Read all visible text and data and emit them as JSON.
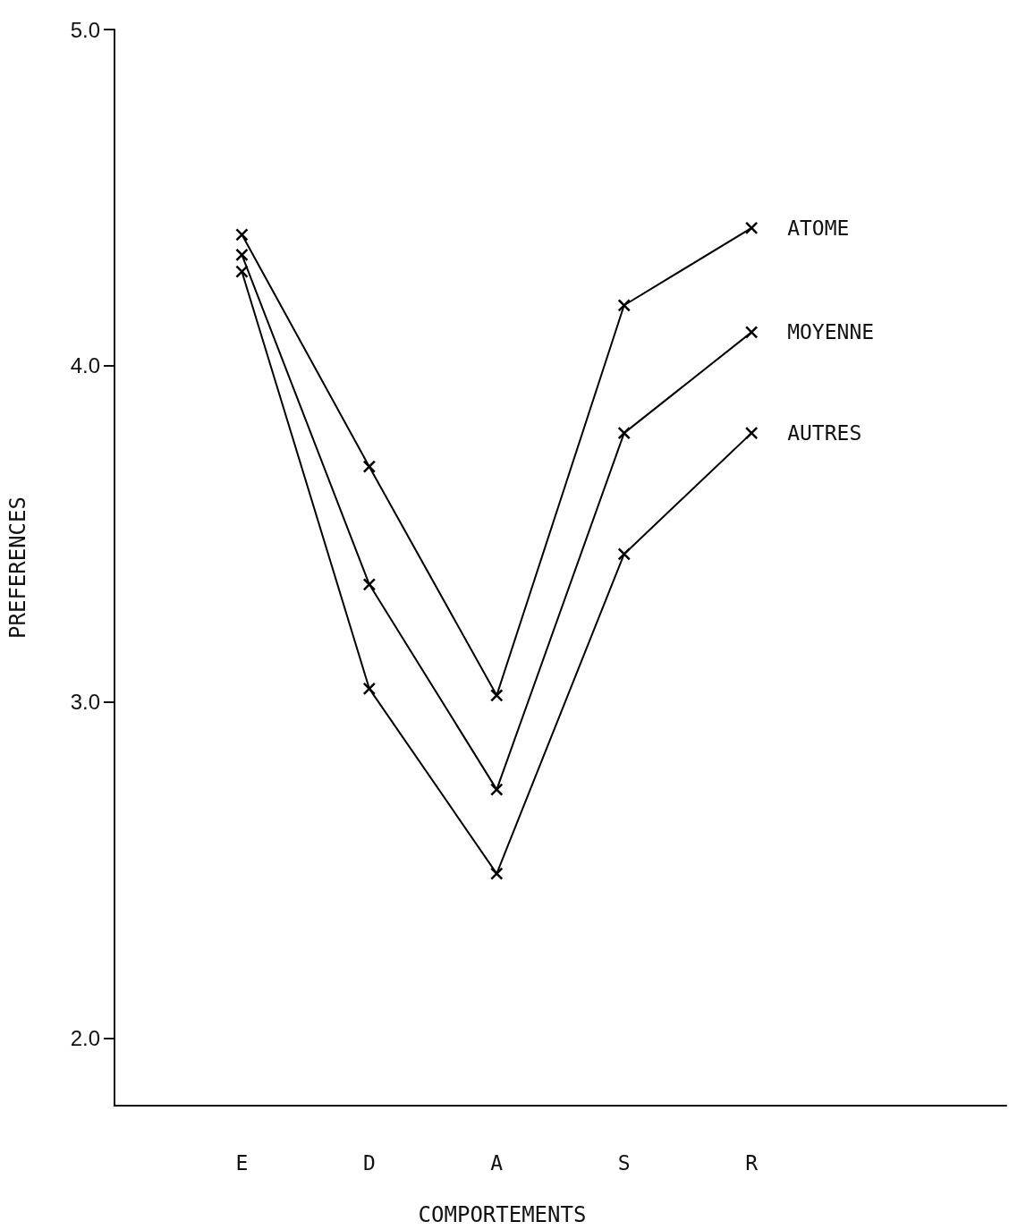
{
  "chart_data": {
    "type": "line",
    "xlabel": "COMPORTEMENTS",
    "ylabel": "PREFERENCES",
    "categories": [
      "E",
      "D",
      "A",
      "S",
      "R"
    ],
    "series": [
      {
        "name": "ATOME",
        "color": "#000000",
        "values": [
          4.39,
          3.7,
          3.02,
          4.18,
          4.41
        ]
      },
      {
        "name": "MOYENNE",
        "color": "#000000",
        "values": [
          4.33,
          3.35,
          2.74,
          3.8,
          4.1
        ]
      },
      {
        "name": "AUTRES",
        "color": "#000000",
        "values": [
          4.28,
          3.04,
          2.49,
          3.44,
          3.8
        ]
      }
    ],
    "ylim": [
      1.8,
      5.0
    ],
    "yticks": [
      {
        "value": 2,
        "label": "2.0"
      },
      {
        "value": 3,
        "label": "3.0"
      },
      {
        "value": 4,
        "label": "4.0"
      },
      {
        "value": 5,
        "label": "5.0"
      }
    ],
    "grid": false,
    "legend": false,
    "marker": "cross",
    "line_style": "solid"
  }
}
